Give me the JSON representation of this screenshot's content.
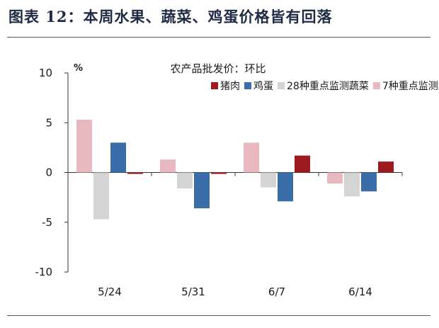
{
  "figure": {
    "title": "图表 12：本周水果、蔬菜、鸡蛋价格皆有回落"
  },
  "chart_data": {
    "type": "bar",
    "title": "农产品批发价：环比",
    "ylabel": "%",
    "xlabel": "",
    "ylim": [
      -10,
      10
    ],
    "yticks": [
      10,
      5,
      0,
      -5,
      -10
    ],
    "categories": [
      "5/24",
      "5/31",
      "6/7",
      "6/14"
    ],
    "series": [
      {
        "name": "7种重点监测水果",
        "color": "#e7b9bf",
        "values": [
          5.3,
          1.3,
          3.0,
          -1.1
        ]
      },
      {
        "name": "28种重点监测蔬菜",
        "color": "#d4d4d4",
        "values": [
          -4.7,
          -1.6,
          -1.5,
          -2.4
        ]
      },
      {
        "name": "鸡蛋",
        "color": "#3b6ea8",
        "values": [
          3.0,
          -3.6,
          -2.9,
          -1.9
        ]
      },
      {
        "name": "猪肉",
        "color": "#9b1b1f",
        "values": [
          -0.1,
          -0.1,
          1.7,
          1.1
        ]
      }
    ],
    "legend_order": [
      "猪肉",
      "鸡蛋",
      "28种重点监测蔬菜",
      "7种重点监测水果"
    ],
    "legend_position": "top-right",
    "grid": false
  }
}
